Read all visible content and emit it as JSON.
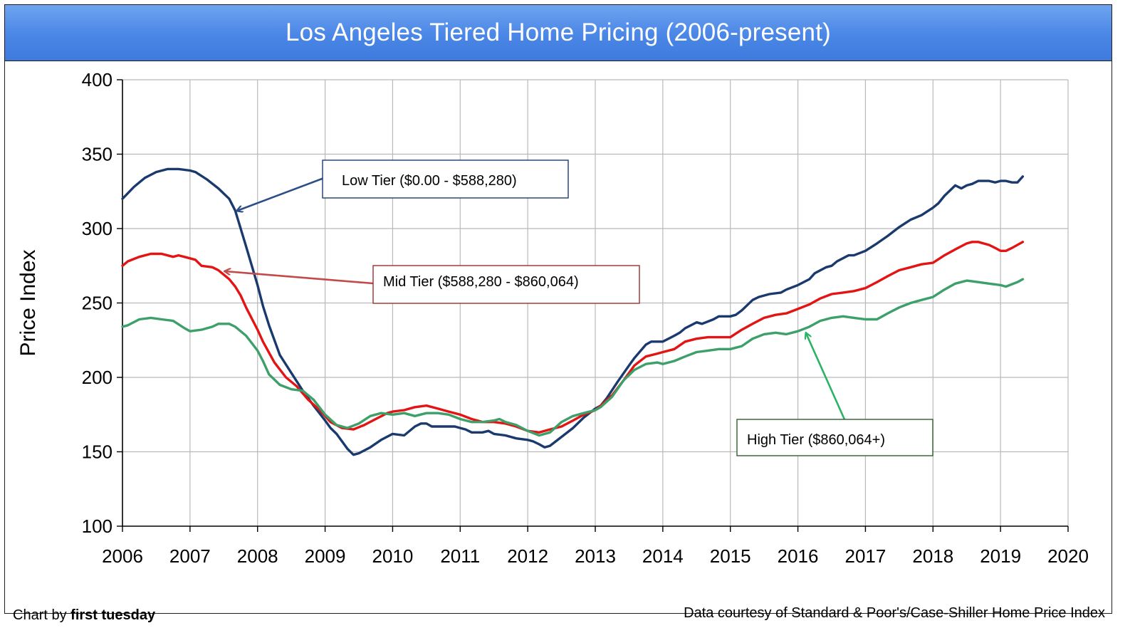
{
  "chart_data": {
    "type": "line",
    "title": "Los Angeles Tiered Home Pricing (2006-present)",
    "ylabel": "Price Index",
    "xlabel": "",
    "xlim": [
      2006,
      2020
    ],
    "ylim": [
      100,
      400
    ],
    "x_ticks": [
      "2006",
      "2007",
      "2008",
      "2009",
      "2010",
      "2011",
      "2012",
      "2013",
      "2014",
      "2015",
      "2016",
      "2017",
      "2018",
      "2019",
      "2020"
    ],
    "y_ticks": [
      "100",
      "150",
      "200",
      "250",
      "300",
      "350",
      "400"
    ],
    "grid": true,
    "series": [
      {
        "name": "Low Tier ($0.00 - $588,280)",
        "color": "#1a3a6e",
        "label_color": "#1f3a6e",
        "arrow_color": "#2b4f86",
        "points": [
          [
            2006.0,
            320
          ],
          [
            2006.17,
            328
          ],
          [
            2006.33,
            334
          ],
          [
            2006.5,
            338
          ],
          [
            2006.67,
            340
          ],
          [
            2006.83,
            340
          ],
          [
            2007.0,
            339
          ],
          [
            2007.08,
            338
          ],
          [
            2007.25,
            333
          ],
          [
            2007.42,
            327
          ],
          [
            2007.58,
            320
          ],
          [
            2007.67,
            312
          ],
          [
            2007.75,
            300
          ],
          [
            2007.83,
            288
          ],
          [
            2008.0,
            262
          ],
          [
            2008.08,
            248
          ],
          [
            2008.17,
            235
          ],
          [
            2008.33,
            215
          ],
          [
            2008.5,
            203
          ],
          [
            2008.67,
            191
          ],
          [
            2008.83,
            181
          ],
          [
            2009.0,
            171
          ],
          [
            2009.08,
            166
          ],
          [
            2009.17,
            162
          ],
          [
            2009.33,
            152
          ],
          [
            2009.42,
            148
          ],
          [
            2009.5,
            149
          ],
          [
            2009.67,
            153
          ],
          [
            2009.83,
            158
          ],
          [
            2010.0,
            162
          ],
          [
            2010.17,
            161
          ],
          [
            2010.33,
            167
          ],
          [
            2010.42,
            169
          ],
          [
            2010.5,
            169
          ],
          [
            2010.58,
            167
          ],
          [
            2010.75,
            167
          ],
          [
            2010.92,
            167
          ],
          [
            2011.0,
            166
          ],
          [
            2011.08,
            165
          ],
          [
            2011.17,
            163
          ],
          [
            2011.33,
            163
          ],
          [
            2011.42,
            164
          ],
          [
            2011.5,
            162
          ],
          [
            2011.67,
            161
          ],
          [
            2011.83,
            159
          ],
          [
            2012.0,
            158
          ],
          [
            2012.08,
            157
          ],
          [
            2012.17,
            155
          ],
          [
            2012.25,
            153
          ],
          [
            2012.33,
            154
          ],
          [
            2012.5,
            160
          ],
          [
            2012.67,
            166
          ],
          [
            2012.83,
            173
          ],
          [
            2013.0,
            179
          ],
          [
            2013.08,
            181
          ],
          [
            2013.17,
            186
          ],
          [
            2013.33,
            197
          ],
          [
            2013.5,
            208
          ],
          [
            2013.58,
            213
          ],
          [
            2013.75,
            222
          ],
          [
            2013.83,
            224
          ],
          [
            2014.0,
            224
          ],
          [
            2014.17,
            228
          ],
          [
            2014.25,
            230
          ],
          [
            2014.33,
            233
          ],
          [
            2014.5,
            237
          ],
          [
            2014.58,
            236
          ],
          [
            2014.75,
            239
          ],
          [
            2014.83,
            241
          ],
          [
            2015.0,
            241
          ],
          [
            2015.08,
            242
          ],
          [
            2015.17,
            245
          ],
          [
            2015.33,
            252
          ],
          [
            2015.42,
            254
          ],
          [
            2015.58,
            256
          ],
          [
            2015.75,
            257
          ],
          [
            2015.83,
            259
          ],
          [
            2016.0,
            262
          ],
          [
            2016.17,
            266
          ],
          [
            2016.25,
            270
          ],
          [
            2016.42,
            274
          ],
          [
            2016.5,
            275
          ],
          [
            2016.58,
            278
          ],
          [
            2016.75,
            282
          ],
          [
            2016.83,
            282
          ],
          [
            2017.0,
            285
          ],
          [
            2017.17,
            290
          ],
          [
            2017.33,
            295
          ],
          [
            2017.5,
            301
          ],
          [
            2017.67,
            306
          ],
          [
            2017.83,
            309
          ],
          [
            2018.0,
            314
          ],
          [
            2018.08,
            317
          ],
          [
            2018.17,
            322
          ],
          [
            2018.33,
            329
          ],
          [
            2018.42,
            327
          ],
          [
            2018.5,
            329
          ],
          [
            2018.58,
            330
          ],
          [
            2018.67,
            332
          ],
          [
            2018.83,
            332
          ],
          [
            2018.92,
            331
          ],
          [
            2019.0,
            332
          ],
          [
            2019.08,
            332
          ],
          [
            2019.17,
            331
          ],
          [
            2019.25,
            331
          ],
          [
            2019.33,
            335
          ]
        ]
      },
      {
        "name": "Mid Tier ($588,280 - $860,064)",
        "color": "#e31414",
        "label_color": "#9b2f2f",
        "arrow_color": "#c24a4a",
        "points": [
          [
            2006.0,
            275
          ],
          [
            2006.08,
            278
          ],
          [
            2006.25,
            281
          ],
          [
            2006.42,
            283
          ],
          [
            2006.58,
            283
          ],
          [
            2006.75,
            281
          ],
          [
            2006.83,
            282
          ],
          [
            2007.0,
            280
          ],
          [
            2007.08,
            279
          ],
          [
            2007.17,
            275
          ],
          [
            2007.33,
            274
          ],
          [
            2007.42,
            272
          ],
          [
            2007.58,
            266
          ],
          [
            2007.67,
            261
          ],
          [
            2007.75,
            255
          ],
          [
            2007.83,
            247
          ],
          [
            2008.0,
            232
          ],
          [
            2008.08,
            224
          ],
          [
            2008.25,
            210
          ],
          [
            2008.42,
            200
          ],
          [
            2008.58,
            194
          ],
          [
            2008.75,
            185
          ],
          [
            2008.92,
            178
          ],
          [
            2009.0,
            174
          ],
          [
            2009.08,
            170
          ],
          [
            2009.25,
            166
          ],
          [
            2009.42,
            165
          ],
          [
            2009.58,
            168
          ],
          [
            2009.75,
            172
          ],
          [
            2009.92,
            176
          ],
          [
            2010.0,
            177
          ],
          [
            2010.17,
            178
          ],
          [
            2010.33,
            180
          ],
          [
            2010.5,
            181
          ],
          [
            2010.67,
            179
          ],
          [
            2010.83,
            177
          ],
          [
            2011.0,
            175
          ],
          [
            2011.17,
            172
          ],
          [
            2011.33,
            170
          ],
          [
            2011.5,
            170
          ],
          [
            2011.67,
            169
          ],
          [
            2011.83,
            167
          ],
          [
            2012.0,
            164
          ],
          [
            2012.17,
            163
          ],
          [
            2012.33,
            165
          ],
          [
            2012.5,
            167
          ],
          [
            2012.67,
            171
          ],
          [
            2012.83,
            175
          ],
          [
            2013.0,
            178
          ],
          [
            2013.08,
            181
          ],
          [
            2013.25,
            188
          ],
          [
            2013.42,
            198
          ],
          [
            2013.58,
            208
          ],
          [
            2013.75,
            214
          ],
          [
            2013.92,
            216
          ],
          [
            2014.0,
            217
          ],
          [
            2014.17,
            219
          ],
          [
            2014.33,
            224
          ],
          [
            2014.5,
            226
          ],
          [
            2014.67,
            227
          ],
          [
            2014.83,
            227
          ],
          [
            2015.0,
            227
          ],
          [
            2015.17,
            232
          ],
          [
            2015.33,
            236
          ],
          [
            2015.5,
            240
          ],
          [
            2015.67,
            242
          ],
          [
            2015.83,
            243
          ],
          [
            2016.0,
            246
          ],
          [
            2016.17,
            249
          ],
          [
            2016.33,
            253
          ],
          [
            2016.5,
            256
          ],
          [
            2016.67,
            257
          ],
          [
            2016.83,
            258
          ],
          [
            2017.0,
            260
          ],
          [
            2017.17,
            264
          ],
          [
            2017.33,
            268
          ],
          [
            2017.5,
            272
          ],
          [
            2017.67,
            274
          ],
          [
            2017.83,
            276
          ],
          [
            2018.0,
            277
          ],
          [
            2018.17,
            282
          ],
          [
            2018.33,
            286
          ],
          [
            2018.5,
            290
          ],
          [
            2018.58,
            291
          ],
          [
            2018.67,
            291
          ],
          [
            2018.83,
            289
          ],
          [
            2018.92,
            287
          ],
          [
            2019.0,
            285
          ],
          [
            2019.08,
            285
          ],
          [
            2019.17,
            287
          ],
          [
            2019.33,
            291
          ]
        ]
      },
      {
        "name": "High Tier ($860,064+)",
        "color": "#3da06a",
        "label_color": "#2f5f2f",
        "arrow_color": "#2bb364",
        "points": [
          [
            2006.0,
            234
          ],
          [
            2006.08,
            235
          ],
          [
            2006.25,
            239
          ],
          [
            2006.42,
            240
          ],
          [
            2006.58,
            239
          ],
          [
            2006.75,
            238
          ],
          [
            2006.92,
            233
          ],
          [
            2007.0,
            231
          ],
          [
            2007.17,
            232
          ],
          [
            2007.33,
            234
          ],
          [
            2007.42,
            236
          ],
          [
            2007.58,
            236
          ],
          [
            2007.67,
            234
          ],
          [
            2007.83,
            228
          ],
          [
            2008.0,
            218
          ],
          [
            2008.08,
            211
          ],
          [
            2008.17,
            202
          ],
          [
            2008.33,
            195
          ],
          [
            2008.5,
            192
          ],
          [
            2008.67,
            191
          ],
          [
            2008.83,
            185
          ],
          [
            2009.0,
            175
          ],
          [
            2009.17,
            168
          ],
          [
            2009.33,
            166
          ],
          [
            2009.5,
            169
          ],
          [
            2009.67,
            174
          ],
          [
            2009.83,
            176
          ],
          [
            2010.0,
            175
          ],
          [
            2010.17,
            176
          ],
          [
            2010.33,
            174
          ],
          [
            2010.5,
            176
          ],
          [
            2010.67,
            176
          ],
          [
            2010.83,
            175
          ],
          [
            2011.0,
            172
          ],
          [
            2011.17,
            170
          ],
          [
            2011.33,
            170
          ],
          [
            2011.5,
            171
          ],
          [
            2011.58,
            172
          ],
          [
            2011.67,
            170
          ],
          [
            2011.83,
            168
          ],
          [
            2012.0,
            164
          ],
          [
            2012.17,
            161
          ],
          [
            2012.33,
            163
          ],
          [
            2012.5,
            170
          ],
          [
            2012.67,
            174
          ],
          [
            2012.83,
            176
          ],
          [
            2013.0,
            178
          ],
          [
            2013.08,
            180
          ],
          [
            2013.25,
            187
          ],
          [
            2013.42,
            198
          ],
          [
            2013.58,
            205
          ],
          [
            2013.75,
            209
          ],
          [
            2013.92,
            210
          ],
          [
            2014.0,
            209
          ],
          [
            2014.17,
            211
          ],
          [
            2014.33,
            214
          ],
          [
            2014.5,
            217
          ],
          [
            2014.67,
            218
          ],
          [
            2014.83,
            219
          ],
          [
            2015.0,
            219
          ],
          [
            2015.17,
            221
          ],
          [
            2015.33,
            226
          ],
          [
            2015.5,
            229
          ],
          [
            2015.67,
            230
          ],
          [
            2015.83,
            229
          ],
          [
            2016.0,
            231
          ],
          [
            2016.17,
            234
          ],
          [
            2016.33,
            238
          ],
          [
            2016.5,
            240
          ],
          [
            2016.67,
            241
          ],
          [
            2016.83,
            240
          ],
          [
            2017.0,
            239
          ],
          [
            2017.17,
            239
          ],
          [
            2017.33,
            243
          ],
          [
            2017.5,
            247
          ],
          [
            2017.67,
            250
          ],
          [
            2017.83,
            252
          ],
          [
            2018.0,
            254
          ],
          [
            2018.17,
            259
          ],
          [
            2018.33,
            263
          ],
          [
            2018.5,
            265
          ],
          [
            2018.67,
            264
          ],
          [
            2018.83,
            263
          ],
          [
            2019.0,
            262
          ],
          [
            2019.08,
            261
          ],
          [
            2019.25,
            264
          ],
          [
            2019.33,
            266
          ]
        ]
      }
    ],
    "annotations": [
      {
        "series": 0,
        "text": "Low Tier ($0.00 - $588,280)"
      },
      {
        "series": 1,
        "text": "Mid Tier ($588,280 - $860,064)"
      },
      {
        "series": 2,
        "text": "High Tier ($860,064+)"
      }
    ]
  },
  "footer": {
    "credit_prefix": "Chart by ",
    "credit_brand": "first tuesday",
    "source": "Data courtesy of Standard & Poor's/Case-Shiller Home Price Index"
  }
}
